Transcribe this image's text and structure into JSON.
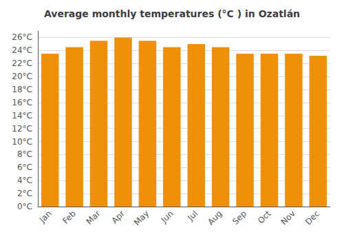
{
  "chart_data": {
    "type": "bar",
    "title": "Average monthly temperatures (°C ) in Ozatlán",
    "categories": [
      "Jan",
      "Feb",
      "Mar",
      "Apr",
      "May",
      "Jun",
      "Jul",
      "Aug",
      "Sep",
      "Oct",
      "Nov",
      "Dec"
    ],
    "values": [
      23.5,
      24.5,
      25.5,
      26.0,
      25.5,
      24.5,
      25.0,
      24.5,
      23.5,
      23.5,
      23.5,
      23.2
    ],
    "color": "#F0900A",
    "ylim": [
      0,
      27
    ],
    "yticks": [
      {
        "value": 0,
        "label": "0°C"
      },
      {
        "value": 2,
        "label": "2°C"
      },
      {
        "value": 4,
        "label": "4°C"
      },
      {
        "value": 6,
        "label": "6°C"
      },
      {
        "value": 8,
        "label": "8°C"
      },
      {
        "value": 10,
        "label": "10°C"
      },
      {
        "value": 12,
        "label": "12°C"
      },
      {
        "value": 14,
        "label": "14°C"
      },
      {
        "value": 16,
        "label": "16°C"
      },
      {
        "value": 18,
        "label": "18°C"
      },
      {
        "value": 20,
        "label": "20°C"
      },
      {
        "value": 22,
        "label": "22°C"
      },
      {
        "value": 24,
        "label": "24°C"
      },
      {
        "value": 26,
        "label": "26°C"
      }
    ],
    "grid": true
  }
}
